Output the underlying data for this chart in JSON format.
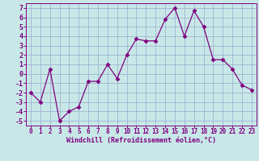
{
  "x": [
    0,
    1,
    2,
    3,
    4,
    5,
    6,
    7,
    8,
    9,
    10,
    11,
    12,
    13,
    14,
    15,
    16,
    17,
    18,
    19,
    20,
    21,
    22,
    23
  ],
  "y": [
    -2,
    -3,
    0.5,
    -5,
    -4,
    -3.5,
    -0.8,
    -0.8,
    1,
    -0.5,
    2,
    3.7,
    3.5,
    3.5,
    5.8,
    7,
    4,
    6.7,
    5,
    1.5,
    1.5,
    0.5,
    -1.2,
    -1.7
  ],
  "line_color": "#800080",
  "marker": "D",
  "marker_size": 2.5,
  "bg_color": "#c8e8e8",
  "grid_color": "#99aacc",
  "xlabel": "Windchill (Refroidissement éolien,°C)",
  "ylim": [
    -5.5,
    7.5
  ],
  "yticks": [
    -5,
    -4,
    -3,
    -2,
    -1,
    0,
    1,
    2,
    3,
    4,
    5,
    6,
    7
  ],
  "xticks": [
    0,
    1,
    2,
    3,
    4,
    5,
    6,
    7,
    8,
    9,
    10,
    11,
    12,
    13,
    14,
    15,
    16,
    17,
    18,
    19,
    20,
    21,
    22,
    23
  ],
  "label_color": "#800080",
  "tick_color": "#800080",
  "xlabel_fontsize": 6.0,
  "tick_fontsize": 5.5,
  "ytick_fontsize": 6.0
}
